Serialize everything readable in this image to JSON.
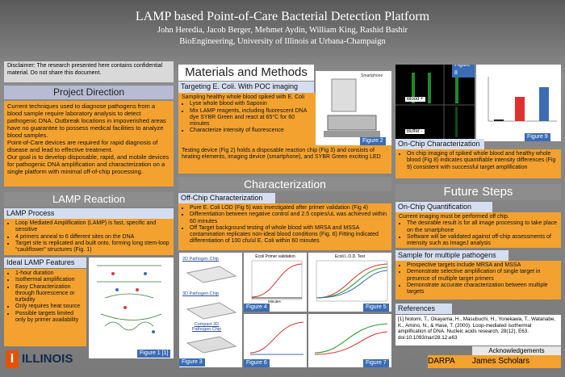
{
  "header": {
    "title": "LAMP based Point-of-Care Bacterial Detection Platform",
    "authors": "John Heredia, Jacob Berger, Mehmet Aydin, William King, Rashid Bashir",
    "affiliation": "BioEngineering, University of Illinois at Urbana-Champaign"
  },
  "disclaimer": "Disclaimer: The research presented here contains confidential material. Do not share this document.",
  "project_direction": {
    "heading": "Project Direction",
    "paragraphs": [
      "Current techniques used to diagnose pathogens from a blood sample require laboratory analysis to detect pathogenic DNA. Outbreak locations in impoverished areas have no guarantee to possess medical facilities to analyze blood samples.",
      "Point-of-Care devices are required for rapid diagnosis of disease and lead to effective treatment.",
      "Our goal is to develop disposable, rapid, and mobile devices for pathogenic DNA amplification and characterization on a single platform with minimal off-of-chip processing."
    ]
  },
  "lamp_reaction": {
    "heading": "LAMP Reaction",
    "process": {
      "heading": "LAMP Process",
      "items": [
        "Loop Mediated Amplification (LAMP) is fast, specific and sensitive",
        "4 primers anneal to 6 different sites on the DNA",
        "Target site is replicated and built onto, forming long stem-loop “cauliflower” structures (Fig. 1)"
      ]
    },
    "features": {
      "heading": "Ideal LAMP Features",
      "items": [
        "1-hour duration",
        "Isothermal amplification",
        "Easy Characterization through fluorescence or turbidity",
        "Only requires heat source",
        "Possible targets limited only by primer availability"
      ]
    },
    "figure_caption": "Figure 1 [1]"
  },
  "logo": "ILLINOIS",
  "materials": {
    "heading": "Materials and Methods",
    "subheading": "Targeting E. Coli. With POC imaging",
    "intro": "Sampling healthy whole blood spiked with E. Coli",
    "items": [
      "Lyse whole blood with Saponin",
      "Mix LAMP reagents, including fluorescent DNA dye SYBR Green and react at 65°C for 60 minutes",
      "Characterize intensity of fluorescence"
    ],
    "paragraph": "Testing device (Fig 2) holds a disposable reaction chip (Fig 3) and consists of heating elements, imaging device (smartphone), and SYBR Green exciting LED",
    "figure_caption": "Figure 2",
    "figure_label": "Smartphone"
  },
  "characterization": {
    "heading": "Characterization",
    "subheading": "Off-Chip Characterization",
    "items": [
      "Pure E. Coli LOD (Fig 5) was investigated after primer validation (Fig 4)",
      "Differentiation between negative control and 2.5 copies/uL was achieved within 60 minutes",
      "Off Target background testing of whole blood with MRSA and MSSA contamination replicates non-ideal blood conditions (Fig. 6) Fitting indicated differentiation of 100 cfu/ul E. Coli within 60 minutes"
    ],
    "figure3": {
      "caption": "Figure 3",
      "labels": [
        "2D Pathogen Chip",
        "3D Pathogen Chip",
        "Compact 3D Pathogen Chip"
      ]
    },
    "figure4": {
      "caption": "Figure 4",
      "title": "Ecoli Primer validation",
      "xlabel": "Minutes"
    },
    "figure5": {
      "caption": "Figure 5",
      "title": "Ecoli L.O.D. Test"
    },
    "figure6": {
      "caption": "Figure 6"
    },
    "figure7": {
      "caption": "Figure 7"
    }
  },
  "on_chip": {
    "heading": "On-Chip Characterization",
    "items": [
      "On chip imaging of spiked whole blood and healthy whole blood (Fig 8) indicates quantifiable intensity differences (Fig 9) consistent with successful target amplification"
    ],
    "figure8": {
      "caption": "Figure 8",
      "labels": [
        "Blood +",
        "Buffer -"
      ]
    },
    "figure9": {
      "caption": "Figure 9"
    }
  },
  "future": {
    "heading": "Future Steps",
    "quantification": {
      "heading": "On-Chip Quantification",
      "intro": "Current imaging must be performed off chip.",
      "items": [
        "The desirable result is for all image processing to take place on the smartphone",
        "Software will be validated against off-chip assessments of intensity such as ImageJ analysis"
      ]
    },
    "pathogens": {
      "heading": "Sample for multiple pathogens",
      "items": [
        "Prospective targets include MRSA and MSSA",
        "Demonstrate selective amplification of single target in presence of multiple target primers",
        "Demonstrate accurate characterization between multiple targets"
      ]
    }
  },
  "references": {
    "heading": "References",
    "text": "[1] Notomi, T., Okayama, H., Masubuchi, H., Yonekawa, T., Watanabe, K., Amino, N., & Hase, T. (2000). Loop-mediated isothermal amplification of DNA. Nucleic acids research, 28(12), E63. doi:10.1093/nar/28.12.e63"
  },
  "acknowledgements": {
    "heading": "Acknowledgements",
    "names": [
      "DARPA",
      "James Scholars"
    ]
  }
}
